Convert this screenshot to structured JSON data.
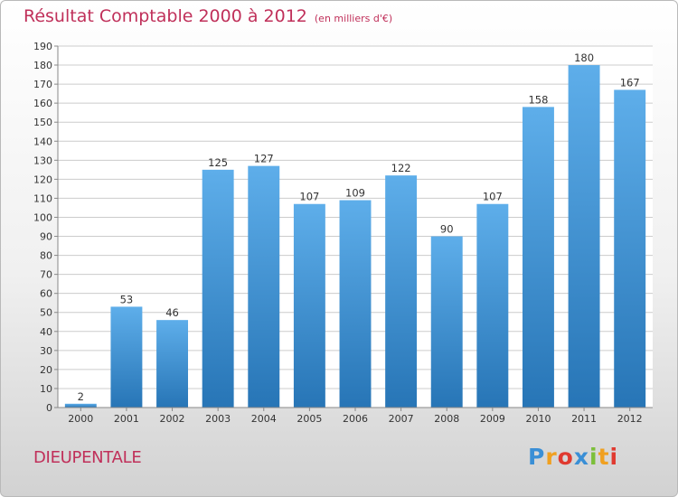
{
  "header": {
    "title": "Résultat Comptable 2000 à 2012",
    "unit": "(en milliers d'€)"
  },
  "footer": {
    "city": "DIEUPENTALE",
    "logo": {
      "letters": [
        {
          "char": "P",
          "color": "#3a8fd6"
        },
        {
          "char": "r",
          "color": "#f0a020"
        },
        {
          "char": "o",
          "color": "#e03a30"
        },
        {
          "char": "x",
          "color": "#3a8fd6"
        },
        {
          "char": "i",
          "color": "#7cbf3a"
        },
        {
          "char": "t",
          "color": "#f0a020"
        },
        {
          "char": "i",
          "color": "#e03a30"
        }
      ]
    }
  },
  "chart_data": {
    "type": "bar",
    "categories": [
      "2000",
      "2001",
      "2002",
      "2003",
      "2004",
      "2005",
      "2006",
      "2007",
      "2008",
      "2009",
      "2010",
      "2011",
      "2012"
    ],
    "values": [
      2,
      53,
      46,
      125,
      127,
      107,
      109,
      122,
      90,
      107,
      158,
      180,
      167
    ],
    "ylim": [
      0,
      190
    ],
    "yticks": [
      0,
      10,
      20,
      30,
      40,
      50,
      60,
      70,
      80,
      90,
      100,
      110,
      120,
      130,
      140,
      150,
      160,
      170,
      180,
      190
    ],
    "grid": true,
    "bar_color": "#3f92d4",
    "grid_color": "#cccccc"
  }
}
